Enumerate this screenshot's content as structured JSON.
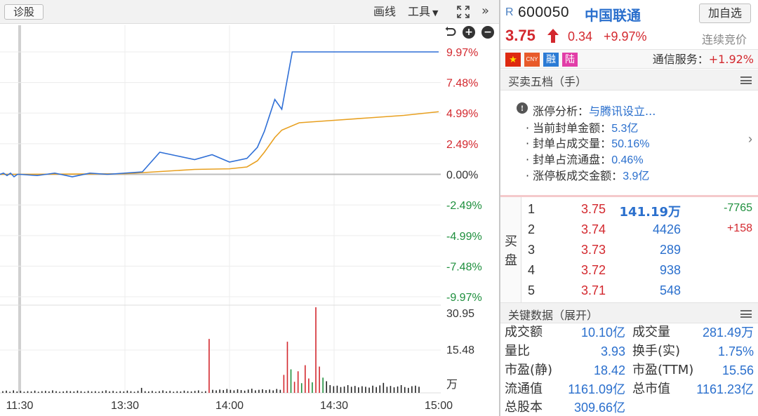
{
  "toolbar": {
    "diagnose_label": "诊股",
    "draw_label": "画线",
    "tools_label": "工具",
    "expand_icon": "fullscreen-icon",
    "collapse_icon": "double-chevron-right-icon"
  },
  "chart_controls": {
    "undo_icon": "undo-icon",
    "zoom_in_icon": "plus-circle-icon",
    "zoom_out_icon": "minus-circle-icon"
  },
  "colors": {
    "up": "#d3282e",
    "down": "#1e8f3d",
    "price_line": "#2f6fd6",
    "avg_line": "#e8a020",
    "accent_blue": "#2a6fcd"
  },
  "chart_data": [
    {
      "type": "line",
      "x_ticks": [
        "11:30",
        "13:30",
        "14:00",
        "14:30",
        "15:00"
      ],
      "y_tick_labels": [
        "9.97%",
        "7.48%",
        "4.99%",
        "2.49%",
        "0.00%",
        "-2.49%",
        "-4.99%",
        "-7.48%",
        "-9.97%"
      ],
      "y_tick_values": [
        9.97,
        7.48,
        4.99,
        2.49,
        0.0,
        -2.49,
        -4.99,
        -7.48,
        -9.97
      ],
      "ylim": [
        -9.97,
        9.97
      ],
      "grid": true,
      "series": [
        {
          "role": "price",
          "x": [
            "11:30",
            "11:35",
            "11:40",
            "11:45",
            "11:50",
            "11:55",
            "13:00",
            "13:05",
            "13:10",
            "13:15",
            "13:20",
            "13:25",
            "13:30",
            "13:35",
            "13:40",
            "13:45",
            "13:50",
            "13:55",
            "14:00",
            "14:05",
            "14:08",
            "14:10",
            "14:13",
            "14:15",
            "14:18",
            "14:20",
            "14:25",
            "14:30",
            "14:35",
            "14:40",
            "14:45",
            "14:50",
            "14:55",
            "15:00"
          ],
          "values": [
            0.0,
            0.1,
            -0.1,
            0.1,
            -0.2,
            0.0,
            0.0,
            -0.1,
            0.1,
            -0.2,
            0.1,
            0.0,
            0.1,
            0.2,
            1.8,
            1.5,
            1.2,
            1.6,
            1.0,
            1.3,
            2.2,
            3.5,
            6.1,
            5.3,
            9.97,
            9.97,
            9.97,
            9.97,
            9.97,
            9.97,
            9.97,
            9.97,
            9.97,
            9.97
          ]
        },
        {
          "role": "average",
          "x": [
            "11:30",
            "11:55",
            "13:00",
            "13:30",
            "13:50",
            "14:00",
            "14:05",
            "14:08",
            "14:10",
            "14:13",
            "14:15",
            "14:20",
            "14:30",
            "14:40",
            "14:50",
            "15:00"
          ],
          "values": [
            0.0,
            0.0,
            0.0,
            0.05,
            0.4,
            0.45,
            0.6,
            1.1,
            1.8,
            3.0,
            3.6,
            4.2,
            4.4,
            4.6,
            4.8,
            5.1
          ]
        }
      ]
    },
    {
      "type": "bar",
      "y_tick_labels": [
        "30.95",
        "15.48"
      ],
      "unit": "万",
      "ylim": [
        0,
        30.95
      ],
      "values": [
        0.6,
        0.8,
        0.4,
        0.9,
        0.5,
        0.7,
        0.4,
        0.6,
        0.5,
        0.8,
        0.4,
        0.6,
        0.7,
        0.5,
        0.9,
        0.6,
        0.4,
        0.5,
        0.7,
        0.6,
        0.5,
        0.8,
        0.6,
        0.4,
        0.7,
        0.5,
        0.6,
        0.4,
        0.6,
        0.9,
        0.5,
        0.7,
        0.4,
        0.6,
        0.5,
        0.8,
        0.6,
        0.4,
        0.7,
        1.8,
        0.6,
        0.5,
        0.7,
        0.4,
        0.6,
        0.9,
        0.5,
        0.7,
        0.4,
        0.6,
        0.5,
        0.8,
        0.6,
        0.5,
        0.7,
        0.9,
        0.4,
        0.6,
        19.5,
        1.1,
        0.9,
        1.2,
        1.0,
        1.4,
        1.1,
        0.9,
        1.3,
        1.0,
        0.8,
        1.2,
        1.5,
        0.9,
        1.1,
        1.3,
        1.0,
        1.2,
        0.9,
        1.4,
        1.1,
        6.5,
        18.5,
        8.5,
        4.0,
        7.8,
        3.5,
        10.0,
        5.2,
        3.8,
        30.95,
        9.5,
        5.5,
        4.2,
        2.8,
        2.4,
        2.6,
        2.1,
        2.3,
        2.8,
        2.2,
        2.5,
        2.0,
        2.4,
        2.2,
        1.9,
        2.6,
        2.1,
        2.7,
        3.6,
        2.2,
        2.5,
        2.0,
        2.3,
        2.8,
        2.1,
        1.8,
        2.4,
        2.6,
        2.2
      ],
      "colors_by_direction": "mixed"
    }
  ],
  "quote": {
    "market_prefix": "R",
    "code": "600050",
    "name": "中国联通",
    "add_watch_label": "加自选",
    "price": "3.75",
    "change": "0.34",
    "change_pct": "+9.97%",
    "status": "连续竞价",
    "tags": [
      "CNY",
      "融",
      "陆"
    ],
    "sector_label": "通信服务：",
    "sector_change": "+1.92%"
  },
  "order_book_section": {
    "title": "买卖五档（手）"
  },
  "analysis": {
    "title_label": "涨停分析：",
    "title_link": "与腾讯设立...",
    "rows": [
      {
        "label": "· 当前封单金额：",
        "value": "5.3亿"
      },
      {
        "label": "· 封单占成交量：",
        "value": "50.16%"
      },
      {
        "label": "· 封单占流通盘：",
        "value": "0.46%"
      },
      {
        "label": "· 涨停板成交金额：",
        "value": "3.9亿"
      }
    ]
  },
  "order_book": {
    "side_label_1": "买",
    "side_label_2": "盘",
    "rows": [
      {
        "idx": "1",
        "price": "3.75",
        "volume": "141.19万",
        "change": "-7765"
      },
      {
        "idx": "2",
        "price": "3.74",
        "volume": "4426",
        "change": "+158"
      },
      {
        "idx": "3",
        "price": "3.73",
        "volume": "289",
        "change": ""
      },
      {
        "idx": "4",
        "price": "3.72",
        "volume": "938",
        "change": ""
      },
      {
        "idx": "5",
        "price": "3.71",
        "volume": "548",
        "change": ""
      }
    ]
  },
  "key_data": {
    "title": "关键数据（展开）",
    "rows": [
      {
        "l1": "成交额",
        "v1": "10.10亿",
        "l2": "成交量",
        "v2": "281.49万"
      },
      {
        "l1": "量比",
        "v1": "3.93",
        "l2": "换手(实)",
        "v2": "1.75%"
      },
      {
        "l1": "市盈(静)",
        "v1": "18.42",
        "l2": "市盈(TTM)",
        "v2": "15.56"
      },
      {
        "l1": "流通值",
        "v1": "1161.09亿",
        "l2": "总市值",
        "v2": "1161.23亿"
      },
      {
        "l1": "总股本",
        "v1": "309.66亿",
        "l2": "",
        "v2": ""
      }
    ]
  }
}
